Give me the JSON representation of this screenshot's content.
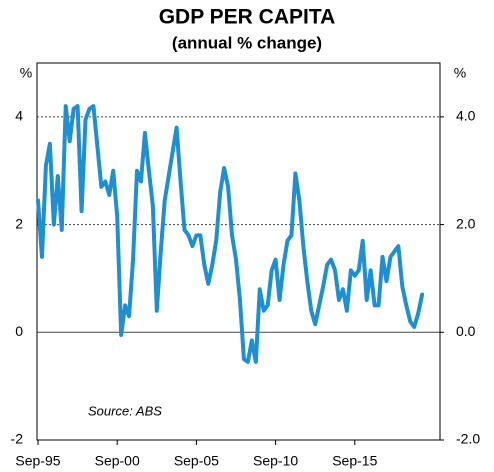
{
  "chart_data": {
    "type": "line",
    "title": "GDP PER CAPITA",
    "subtitle": "(annual % change)",
    "y_label": "%",
    "y2_label": "%",
    "annotation": "Source: ABS",
    "categories": [
      "Sep-95",
      null,
      null,
      null,
      null,
      null,
      null,
      null,
      null,
      null,
      null,
      null,
      null,
      null,
      null,
      null,
      null,
      null,
      null,
      null,
      "Sep-00",
      null,
      null,
      null,
      null,
      null,
      null,
      null,
      null,
      null,
      null,
      null,
      null,
      null,
      null,
      null,
      null,
      null,
      null,
      null,
      "Sep-05",
      null,
      null,
      null,
      null,
      null,
      null,
      null,
      null,
      null,
      null,
      null,
      null,
      null,
      null,
      null,
      null,
      null,
      null,
      null,
      "Sep-10",
      null,
      null,
      null,
      null,
      null,
      null,
      null,
      null,
      null,
      null,
      null,
      null,
      null,
      null,
      null,
      null,
      null,
      null,
      null,
      "Sep-15",
      null,
      null,
      null,
      null,
      null,
      null,
      null,
      null,
      null,
      null,
      null,
      null,
      null,
      null,
      null,
      null,
      null
    ],
    "series": [
      {
        "name": "GDP per capita",
        "color": "#1f8fd0",
        "axis": "y",
        "values": [
          2.45,
          1.4,
          3.1,
          3.5,
          2.0,
          2.9,
          1.9,
          4.2,
          3.55,
          4.15,
          4.2,
          2.25,
          3.95,
          4.15,
          4.2,
          3.45,
          2.7,
          2.8,
          2.55,
          3.0,
          2.15,
          -0.05,
          0.5,
          0.3,
          1.35,
          3.0,
          2.8,
          3.7,
          3.0,
          2.35,
          0.4,
          1.5,
          2.45,
          2.9,
          3.35,
          3.8,
          2.8,
          1.9,
          1.8,
          1.6,
          1.8,
          1.8,
          1.25,
          0.9,
          1.25,
          1.7,
          2.6,
          3.05,
          2.7,
          1.8,
          1.35,
          0.6,
          -0.5,
          -0.55,
          -0.15,
          -0.55,
          0.8,
          0.4,
          0.5,
          1.15,
          1.35,
          0.6,
          1.25,
          1.7,
          1.8,
          2.95,
          2.45,
          1.6,
          0.95,
          0.4,
          0.15,
          0.5,
          0.85,
          1.25,
          1.35,
          1.15,
          0.6,
          0.8,
          0.4,
          1.15,
          1.05,
          1.15,
          1.7,
          0.6,
          1.15,
          0.5,
          0.5,
          1.4,
          0.95,
          1.4,
          1.5,
          1.6,
          0.85,
          0.5,
          0.2,
          0.1,
          0.35,
          0.7
        ]
      }
    ],
    "ylim": [
      -2,
      5
    ],
    "yticks": [
      -2,
      0,
      2,
      4
    ],
    "y2lim": [
      -2,
      5
    ],
    "y2ticks": [
      {
        "value": -2,
        "label": "-2.0"
      },
      {
        "value": 0,
        "label": "0.0"
      },
      {
        "value": 2,
        "label": "2.0"
      },
      {
        "value": 4,
        "label": "4.0"
      }
    ],
    "grid": true
  }
}
